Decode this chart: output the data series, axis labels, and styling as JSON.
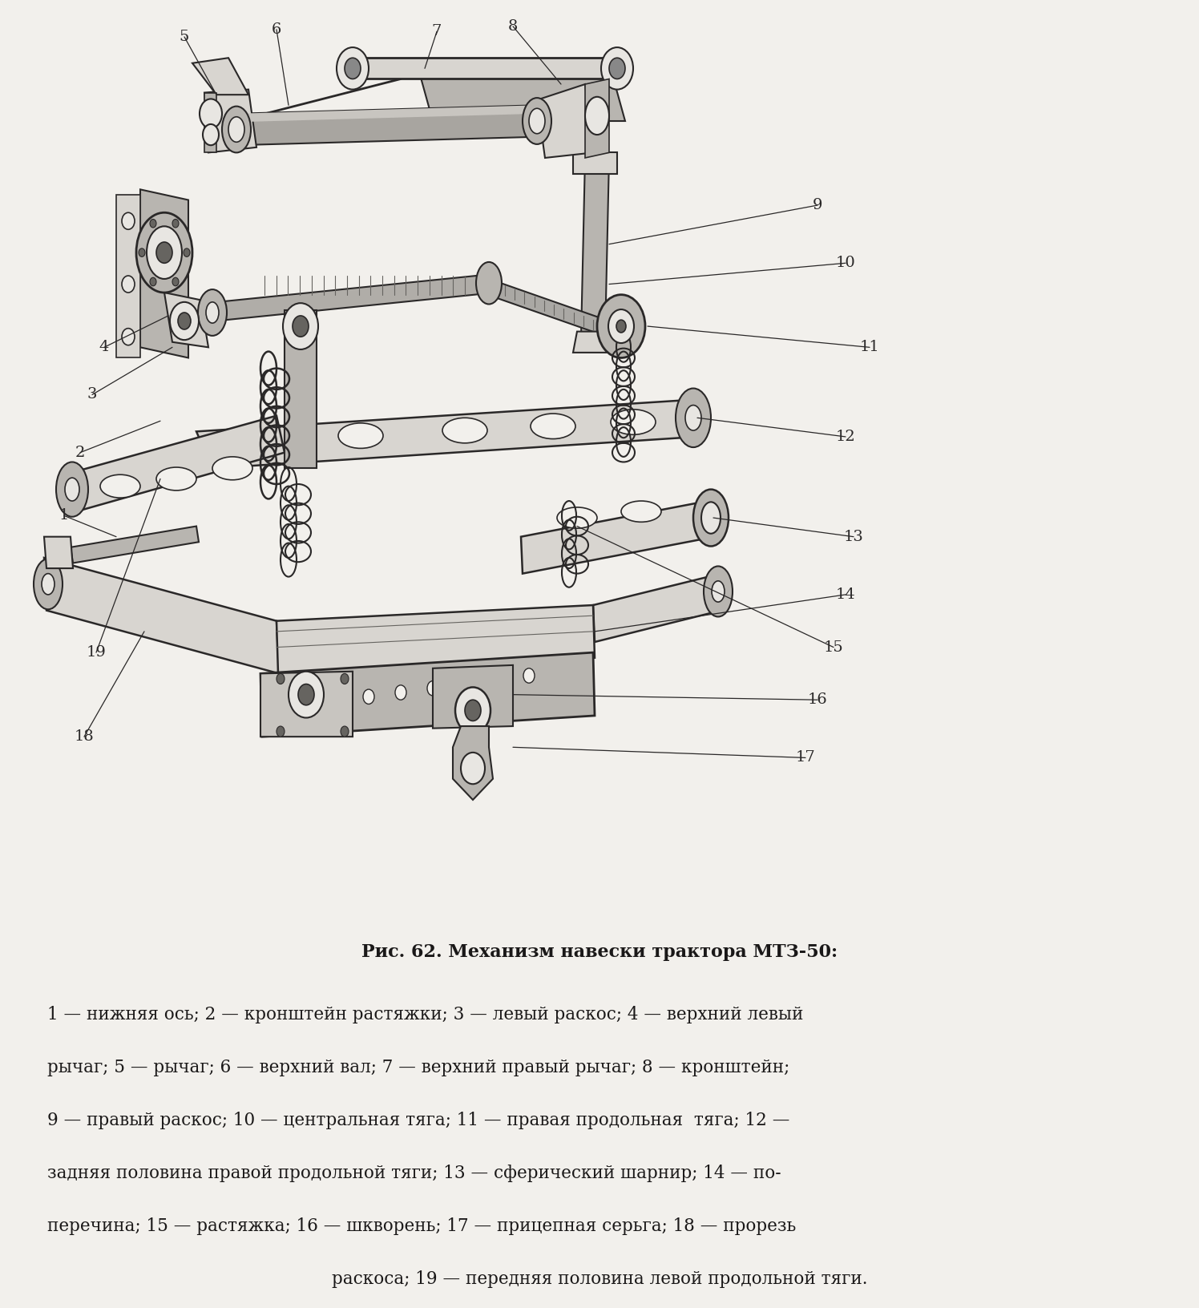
{
  "background_color": "#f2f0ec",
  "title_text": "Рис. 62. Механизм навески трактора МТЗ-50:",
  "caption_line1": "1 — нижняя ось; 2 — кронштейн растяжки; 3 — левый раскос; 4 — верхний левый",
  "caption_line2": "рычаг; 5 — рычаг; 6 — верхний вал; 7 — верхний правый рычаг; 8 — кронштейн;",
  "caption_line3": "9 — правый раскос; 10 — центральная тяга; 11 — правая продольная  тяга; 12 —",
  "caption_line4": "задняя половина правой продольной тяги; 13 — сферический шарнир; 14 — по-",
  "caption_line5": "перечина; 15 — растяжка; 16 — шкворень; 17 — прицепная серьга; 18 — прорезь",
  "caption_line6": "раскоса; 19 — передняя половина левой продольной тяги.",
  "figure_width": 14.96,
  "figure_height": 16.32,
  "dpi": 100
}
